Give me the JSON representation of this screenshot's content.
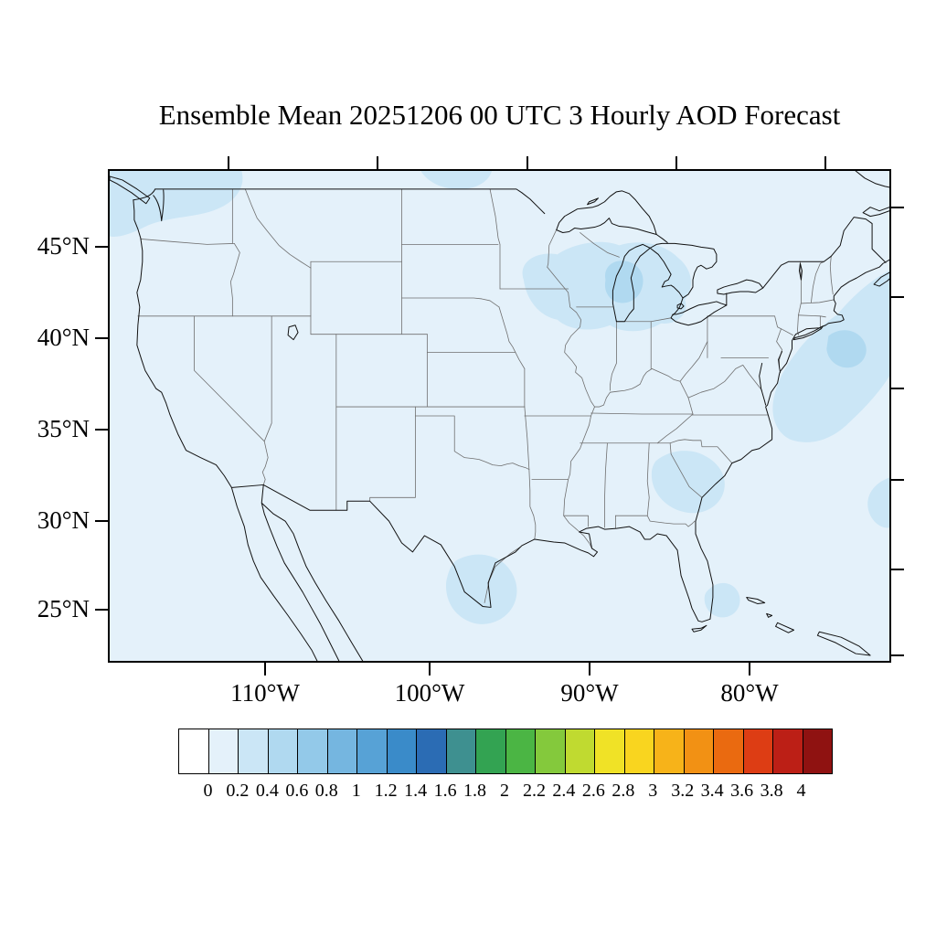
{
  "title": "Ensemble Mean 20251206 00 UTC 3 Hourly AOD Forecast",
  "map": {
    "y_axis": {
      "labels": [
        "45°N",
        "40°N",
        "35°N",
        "30°N",
        "25°N"
      ]
    },
    "x_axis": {
      "labels": [
        "110°W",
        "100°W",
        "90°W",
        "80°W"
      ]
    }
  },
  "colorbar": {
    "tick_labels": [
      "0",
      "0.2",
      "0.4",
      "0.6",
      "0.8",
      "1",
      "1.2",
      "1.4",
      "1.6",
      "1.8",
      "2",
      "2.2",
      "2.4",
      "2.6",
      "2.8",
      "3",
      "3.2",
      "3.4",
      "3.6",
      "3.8",
      "4"
    ],
    "colors": [
      "#ffffff",
      "#e4f1fa",
      "#cbe6f6",
      "#b0d9f0",
      "#93c9e9",
      "#75b6e0",
      "#57a2d6",
      "#3a8bc9",
      "#2b6cb4",
      "#3e9090",
      "#33a352",
      "#4bb544",
      "#84c93c",
      "#c0da30",
      "#f0e226",
      "#f9d51f",
      "#f7b319",
      "#f29114",
      "#ea6a10",
      "#dd3d14",
      "#bc1f16",
      "#8f1211"
    ]
  },
  "chart_data": {
    "type": "heatmap",
    "title": "Ensemble Mean 20251206 00 UTC 3 Hourly AOD Forecast",
    "variable": "Aerosol Optical Depth (AOD)",
    "region": "Continental United States",
    "lat_ticks": [
      "45°N",
      "40°N",
      "35°N",
      "30°N",
      "25°N"
    ],
    "lon_ticks": [
      "110°W",
      "100°W",
      "90°W",
      "80°W"
    ],
    "colorbar_levels": [
      0,
      0.2,
      0.4,
      0.6,
      0.8,
      1,
      1.2,
      1.4,
      1.6,
      1.8,
      2,
      2.2,
      2.4,
      2.6,
      2.8,
      3,
      3.2,
      3.4,
      3.6,
      3.8,
      4
    ],
    "field_summary": "AOD below 0.2 over most of the domain, with patches of 0.2-0.4 over the Pacific Northwest, the upper Great Lakes, the western Atlantic off the Mid-Atlantic and New England coasts, the Southeast coast, south Florida, and the western Gulf of Mexico",
    "legend_position": "bottom"
  }
}
